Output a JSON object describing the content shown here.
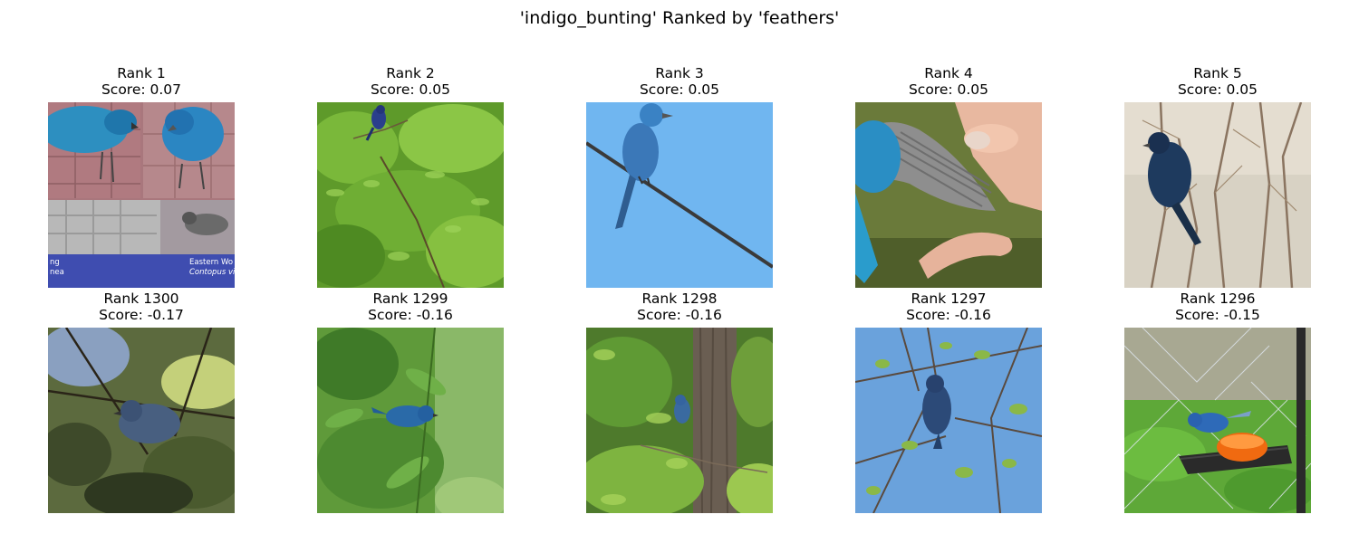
{
  "title": "'indigo_bunting' Ranked by 'feathers'",
  "rows": [
    {
      "row": "top",
      "panels": [
        {
          "rank": "Rank 1",
          "score": "Score: 0.07",
          "scene": "collage",
          "caption_1": "Eastern Wo",
          "caption_2": "Contopus vir",
          "caption_3": "ng",
          "caption_4": "nea"
        },
        {
          "rank": "Rank 2",
          "score": "Score: 0.05",
          "scene": "foliage-bright"
        },
        {
          "rank": "Rank 3",
          "score": "Score: 0.05",
          "scene": "sky-wire"
        },
        {
          "rank": "Rank 4",
          "score": "Score: 0.05",
          "scene": "hand-wing"
        },
        {
          "rank": "Rank 5",
          "score": "Score: 0.05",
          "scene": "bare-branches"
        }
      ]
    },
    {
      "row": "bottom",
      "panels": [
        {
          "rank": "Rank 1300",
          "score": "Score: -0.17",
          "scene": "dark-leaves"
        },
        {
          "rank": "Rank 1299",
          "score": "Score: -0.16",
          "scene": "green-leaves"
        },
        {
          "rank": "Rank 1298",
          "score": "Score: -0.16",
          "scene": "tree-trunk"
        },
        {
          "rank": "Rank 1297",
          "score": "Score: -0.16",
          "scene": "sky-branches"
        },
        {
          "rank": "Rank 1296",
          "score": "Score: -0.15",
          "scene": "feeder"
        }
      ]
    }
  ],
  "colors": {
    "bird_blue": "#2f6fb3",
    "bird_dark": "#234a7a",
    "sky": "#6fb4ee",
    "foliage": "#6aa832",
    "bark": "#5a4a3a",
    "orange": "#f06a10"
  }
}
